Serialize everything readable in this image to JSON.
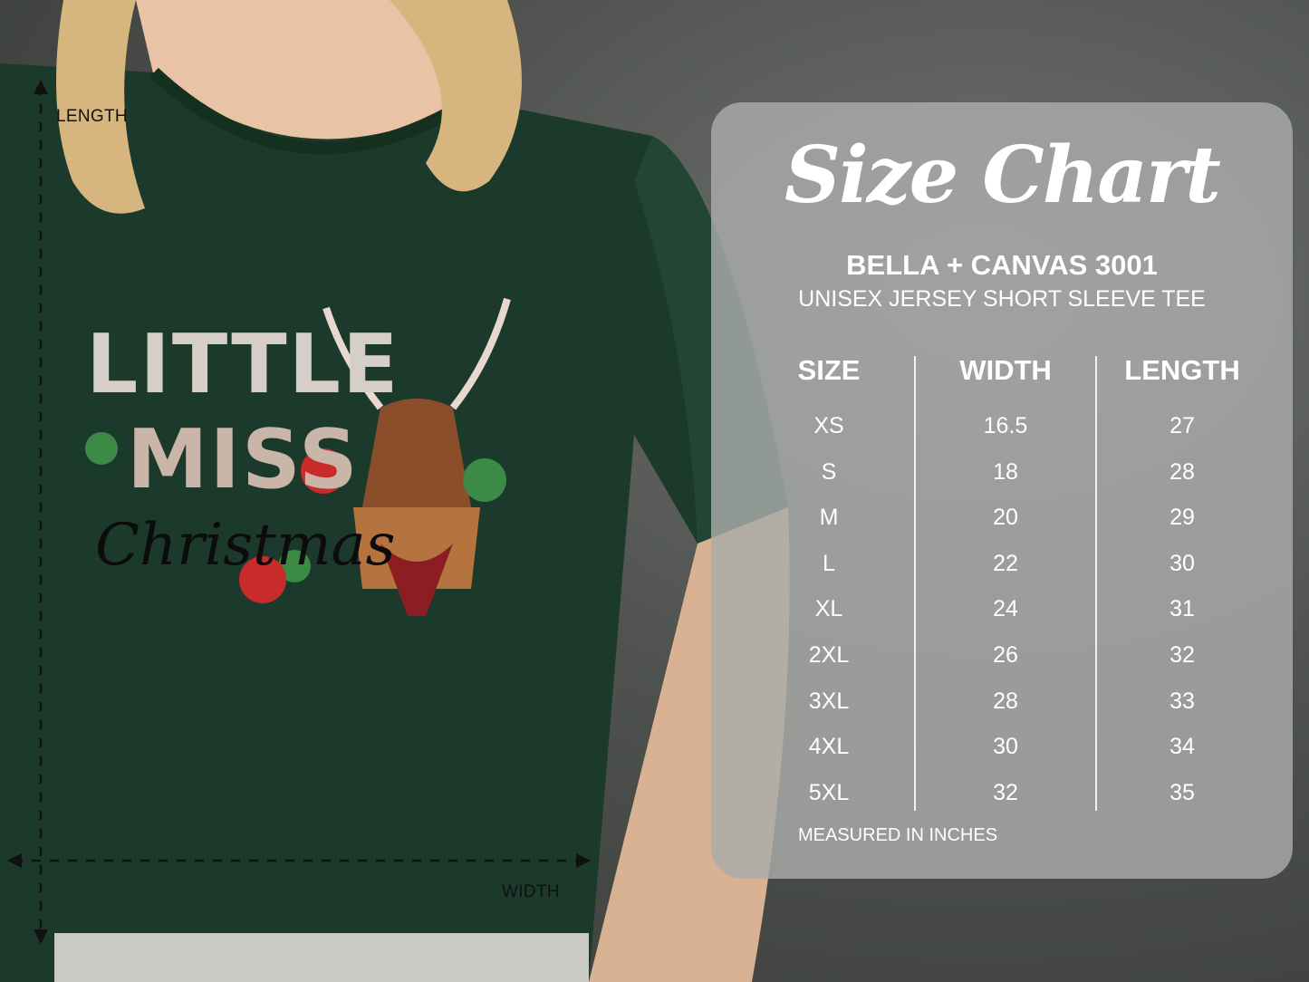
{
  "colors": {
    "shirt": "#1b3a2c",
    "panel": "#a9aba9",
    "text": "#ffffff"
  },
  "mockup": {
    "length_label": "LENGTH",
    "width_label": "WIDTH",
    "artwork_text": [
      "LITTLE",
      "MISS",
      "Christmas"
    ]
  },
  "size_chart": {
    "title": "Size Chart",
    "brand": "BELLA + CANVAS 3001",
    "model": "UNISEX JERSEY SHORT SLEEVE TEE",
    "headers": [
      "SIZE",
      "WIDTH",
      "LENGTH"
    ],
    "rows": [
      [
        "XS",
        "16.5",
        "27"
      ],
      [
        "S",
        "18",
        "28"
      ],
      [
        "M",
        "20",
        "29"
      ],
      [
        "L",
        "22",
        "30"
      ],
      [
        "XL",
        "24",
        "31"
      ],
      [
        "2XL",
        "26",
        "32"
      ],
      [
        "3XL",
        "28",
        "33"
      ],
      [
        "4XL",
        "30",
        "34"
      ],
      [
        "5XL",
        "32",
        "35"
      ]
    ],
    "footer": "MEASURED IN INCHES"
  }
}
